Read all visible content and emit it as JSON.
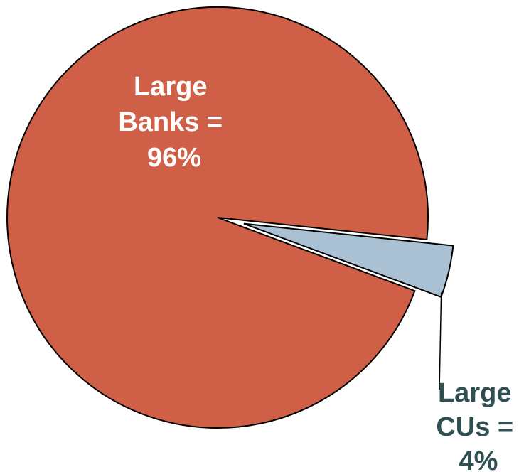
{
  "chart_data": {
    "type": "pie",
    "title": "",
    "slices": [
      {
        "name": "Large Banks",
        "value": 96,
        "color": "#cf5f46",
        "label_lines": [
          "Large",
          "Banks =",
          "96%"
        ],
        "label_color": "#ffffff",
        "exploded": false
      },
      {
        "name": "Large CUs",
        "value": 4,
        "color": "#a9c1d3",
        "label_lines": [
          "Large",
          "CUs =",
          "4%"
        ],
        "label_color": "#2f4f52",
        "exploded": true
      }
    ],
    "legend": "none",
    "outline_color": "#000000",
    "leader_line": true
  }
}
